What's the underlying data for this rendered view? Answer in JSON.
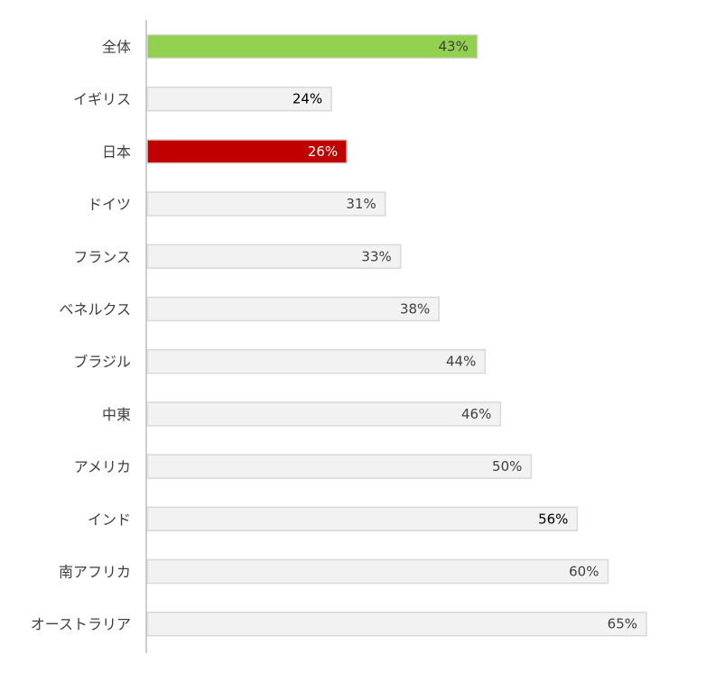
{
  "chart_data": {
    "type": "bar",
    "orientation": "horizontal",
    "categories": [
      "全体",
      "イギリス",
      "日本",
      "ドイツ",
      "フランス",
      "ベネルクス",
      "ブラジル",
      "中東",
      "アメリカ",
      "インド",
      "南アフリカ",
      "オーストラリア"
    ],
    "values": [
      43,
      24,
      26,
      31,
      33,
      38,
      44,
      46,
      50,
      56,
      60,
      65
    ],
    "value_labels": [
      "43%",
      "24%",
      "26%",
      "31%",
      "33%",
      "38%",
      "44%",
      "46%",
      "50%",
      "56%",
      "60%",
      "65%"
    ],
    "xlim": [
      0,
      65
    ],
    "grid": false,
    "legend": "none",
    "colors": {
      "highlight_total": "#92d050",
      "highlight_japan": "#c00000",
      "default_fill": "#f2f2f2",
      "default_border": "#d9d9d9",
      "axis": "#bfbfbf",
      "label_text": "#404040"
    },
    "bar_fill_by_index": [
      "#92d050",
      "#f2f2f2",
      "#c00000",
      "#f2f2f2",
      "#f2f2f2",
      "#f2f2f2",
      "#f2f2f2",
      "#f2f2f2",
      "#f2f2f2",
      "#f2f2f2",
      "#f2f2f2",
      "#f2f2f2"
    ],
    "bar_border_by_index": [
      "#d9d9d9",
      "#d9d9d9",
      "#d9d9d9",
      "#d9d9d9",
      "#d9d9d9",
      "#d9d9d9",
      "#d9d9d9",
      "#d9d9d9",
      "#d9d9d9",
      "#d9d9d9",
      "#d9d9d9",
      "#d9d9d9"
    ],
    "label_color_by_index": [
      "#404040",
      "#000000",
      "#ffffff",
      "#404040",
      "#404040",
      "#404040",
      "#404040",
      "#404040",
      "#404040",
      "#000000",
      "#404040",
      "#404040"
    ]
  }
}
